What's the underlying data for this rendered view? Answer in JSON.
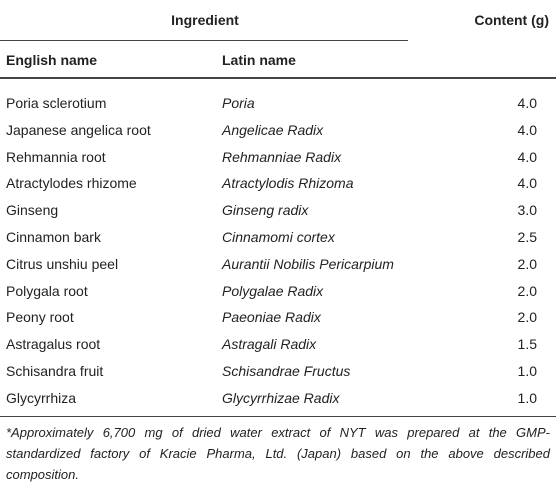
{
  "table": {
    "group_header": "Ingredient",
    "content_header": "Content (g)",
    "columns": [
      "English name",
      "Latin name"
    ],
    "rows": [
      [
        "Poria sclerotium",
        "Poria",
        "4.0"
      ],
      [
        "Japanese angelica root",
        "Angelicae Radix",
        "4.0"
      ],
      [
        "Rehmannia root",
        "Rehmanniae Radix",
        "4.0"
      ],
      [
        "Atractylodes rhizome",
        "Atractylodis Rhizoma",
        "4.0"
      ],
      [
        "Ginseng",
        "Ginseng radix",
        "3.0"
      ],
      [
        "Cinnamon bark",
        "Cinnamomi cortex",
        "2.5"
      ],
      [
        "Citrus unshiu peel",
        "Aurantii Nobilis Pericarpium",
        "2.0"
      ],
      [
        "Polygala root",
        "Polygalae Radix",
        "2.0"
      ],
      [
        "Peony root",
        "Paeoniae Radix",
        "2.0"
      ],
      [
        "Astragalus root",
        "Astragali Radix",
        "1.5"
      ],
      [
        "Schisandra fruit",
        "Schisandrae Fructus",
        "1.0"
      ],
      [
        "Glycyrrhiza",
        "Glycyrrhizae Radix",
        "1.0"
      ]
    ],
    "footnote": "*Approximately 6,700 mg of dried water extract of NYT was prepared at the GMP-standardized factory of Kracie Pharma, Ltd. (Japan) based on the above described composition."
  }
}
